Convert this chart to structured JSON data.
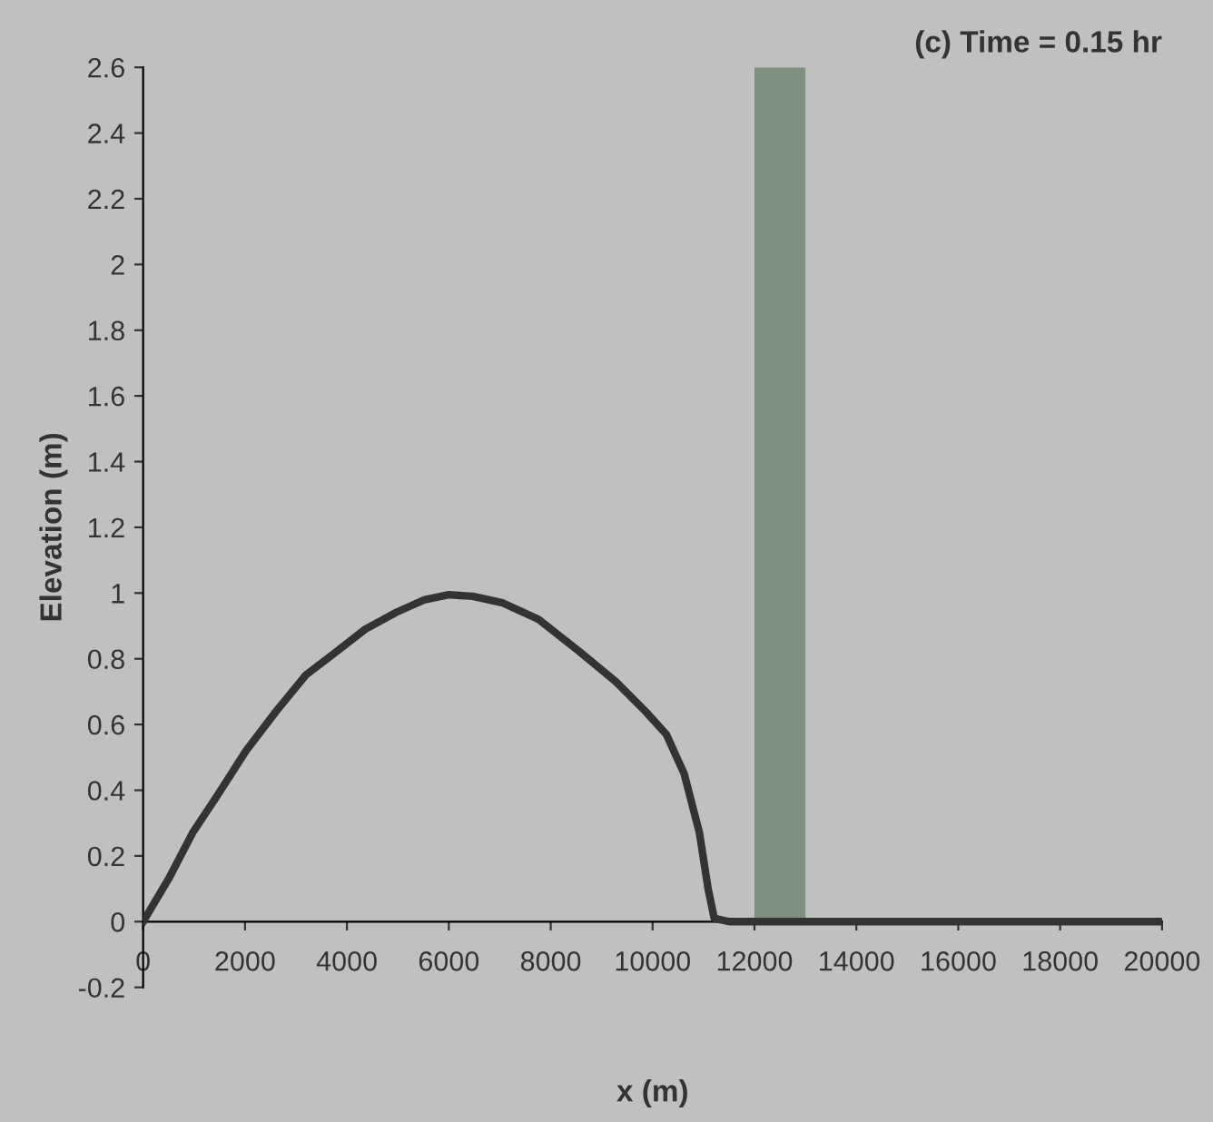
{
  "chart_data": {
    "type": "line",
    "title": "(c) Time = 0.15 hr",
    "xlabel": "x (m)",
    "ylabel": "Elevation (m)",
    "x": [
      0,
      500,
      970,
      1440,
      2020,
      2610,
      3190,
      3780,
      4360,
      4950,
      5530,
      6000,
      6470,
      7060,
      7760,
      8580,
      9280,
      9860,
      10270,
      10620,
      10920,
      11090,
      11210,
      11500,
      20000
    ],
    "series": [
      {
        "color": "#333333",
        "values": [
          0,
          0.13,
          0.27,
          0.38,
          0.52,
          0.64,
          0.75,
          0.82,
          0.89,
          0.94,
          0.98,
          0.995,
          0.99,
          0.97,
          0.92,
          0.82,
          0.73,
          0.64,
          0.57,
          0.45,
          0.27,
          0.1,
          0.01,
          0,
          0
        ]
      }
    ],
    "bands": [
      {
        "axis": "x",
        "from": 12000,
        "to": 13000,
        "color": "#7f8f7f"
      }
    ],
    "xlim": [
      0,
      20000
    ],
    "xticks": [
      0,
      2000,
      4000,
      6000,
      8000,
      10000,
      12000,
      14000,
      16000,
      18000,
      20000
    ],
    "ylim": [
      -0.2,
      2.6
    ],
    "yticks": [
      -0.2,
      0,
      0.2,
      0.4,
      0.6,
      0.8,
      1,
      1.2,
      1.4,
      1.6,
      1.8,
      2,
      2.2,
      2.4,
      2.6
    ],
    "grid": false,
    "legend": false,
    "marker": "none",
    "line_style": "solid"
  }
}
